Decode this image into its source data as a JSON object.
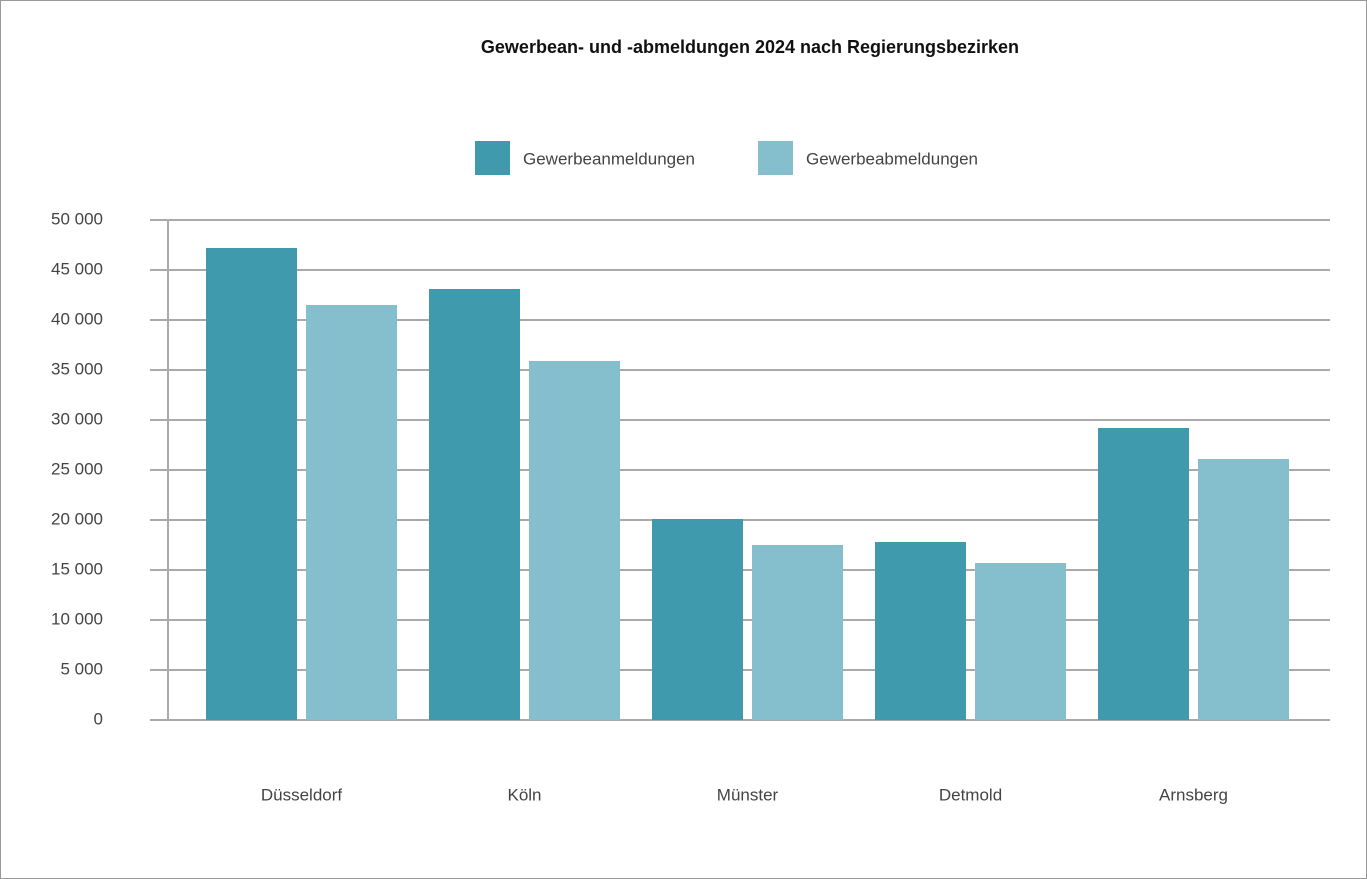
{
  "chart_data": {
    "type": "bar",
    "title": "Gewerbean- und -abmeldungen 2024 nach Regierungsbezirken",
    "categories": [
      "Düsseldorf",
      "Köln",
      "Münster",
      "Detmold",
      "Arnsberg"
    ],
    "series": [
      {
        "name": "Gewerbeanmeldungen",
        "color": "#3f9aad",
        "values": [
          47200,
          43100,
          20100,
          17800,
          29200
        ]
      },
      {
        "name": "Gewerbeabmeldungen",
        "color": "#85bfcd",
        "values": [
          41500,
          35900,
          17500,
          15700,
          26100
        ]
      }
    ],
    "ylim": [
      0,
      50000
    ],
    "yticks": [
      0,
      {
        "value": 5000,
        "label": "5 000"
      },
      {
        "value": 10000,
        "label": "10 000"
      },
      {
        "value": 15000,
        "label": "15 000"
      },
      {
        "value": 20000,
        "label": "20 000"
      },
      {
        "value": 25000,
        "label": "25 000"
      },
      {
        "value": 30000,
        "label": "30 000"
      },
      {
        "value": 35000,
        "label": "35 000"
      },
      {
        "value": 40000,
        "label": "40 000"
      },
      {
        "value": 45000,
        "label": "45 000"
      },
      {
        "value": 50000,
        "label": "50 000"
      }
    ],
    "grid": true,
    "legend": "top"
  }
}
